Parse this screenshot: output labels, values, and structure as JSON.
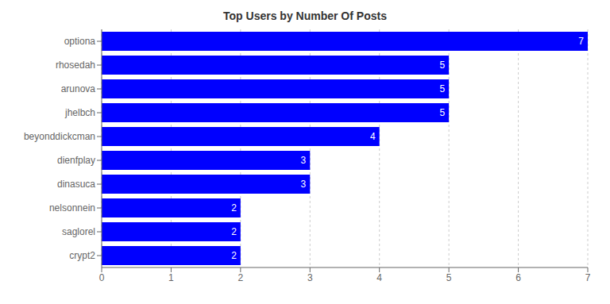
{
  "chart_data": {
    "type": "bar",
    "title": "Top Users by Number Of Posts",
    "orientation": "horizontal",
    "categories": [
      "optiona",
      "rhosedah",
      "arunova",
      "jhelbch",
      "beyonddickcman",
      "dienfplay",
      "dinasuca",
      "nelsonnein",
      "saglorel",
      "crypt2"
    ],
    "values": [
      7,
      5,
      5,
      5,
      4,
      3,
      3,
      2,
      2,
      2
    ],
    "color": "#0000ff",
    "xlim": [
      0,
      7
    ],
    "xticks": [
      0,
      1,
      2,
      3,
      4,
      5,
      6,
      7
    ],
    "grid": true,
    "data_labels": true
  }
}
